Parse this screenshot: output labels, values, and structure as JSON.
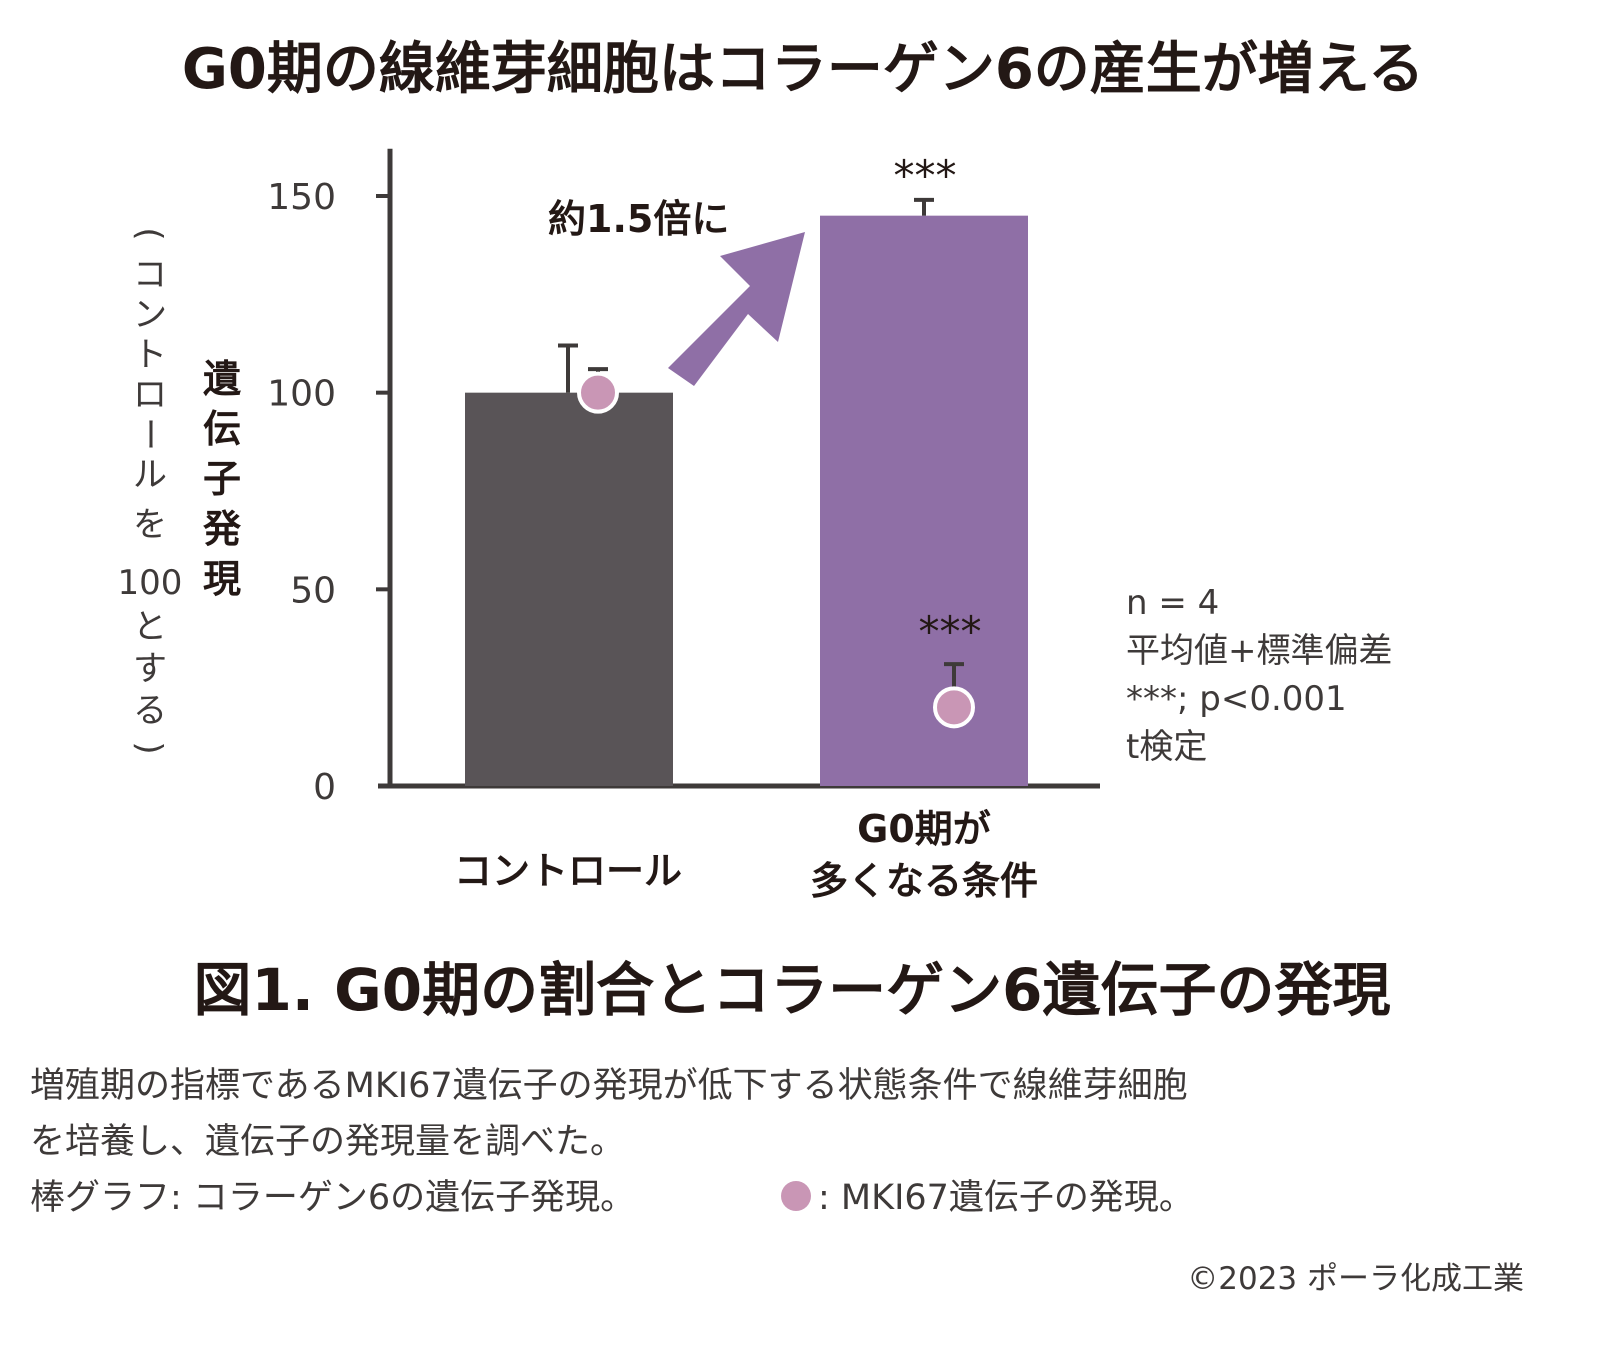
{
  "title": "G0期の線維芽細胞はコラーゲン6の産生が増える",
  "figure_caption": "図1. G0期の割合とコラーゲン6遺伝子の発現",
  "description": {
    "line1": "増殖期の指標であるMKI67遺伝子の発現が低下する状態条件で線維芽細胞",
    "line2": "を培養し、遺伝子の発現量を調べた。",
    "line3a": "棒グラフ: コラーゲン6の遺伝子発現。",
    "line3b": ": MKI67遺伝子の発現。"
  },
  "copyright": "©2023 ポーラ化成工業",
  "colors": {
    "control_bar": "#595457",
    "g0_bar": "#8f6fa6",
    "arrow": "#8f6fa6",
    "dot": "#c996b5",
    "axis": "#3e3a39"
  },
  "chart_data": {
    "type": "bar",
    "ylabel_main": [
      "遺",
      "伝",
      "子",
      "発",
      "現"
    ],
    "ylabel_sub": [
      "(",
      "コ",
      "ン",
      "ト",
      "ロ",
      "ー",
      "ル",
      "を",
      "100",
      "と",
      "す",
      "る",
      ")"
    ],
    "ylim": [
      0,
      160
    ],
    "yticks": [
      0,
      50,
      100,
      150
    ],
    "categories": [
      {
        "lines": [
          "コントロール"
        ]
      },
      {
        "lines": [
          "G0期が",
          "多くなる条件"
        ]
      }
    ],
    "series": [
      {
        "kind": "bar",
        "values": [
          100,
          145
        ],
        "errors": [
          12,
          4
        ]
      },
      {
        "kind": "dot",
        "values": [
          100,
          20
        ],
        "errors": [
          6,
          11
        ]
      }
    ],
    "significance": {
      "bar": [
        "",
        "***"
      ],
      "dot": [
        "",
        "***"
      ]
    },
    "annotation": "約1.5倍に",
    "stats": [
      "n = 4",
      "平均値+標準偏差",
      "***; p<0.001",
      "t検定"
    ]
  }
}
